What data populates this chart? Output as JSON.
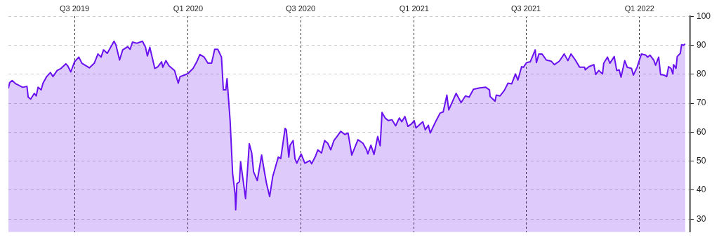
{
  "chart_data": {
    "type": "area",
    "x": [
      "2019-03-16",
      "2019-03-18",
      "2019-03-22",
      "2019-03-28",
      "2019-04-08",
      "2019-04-15",
      "2019-04-17",
      "2019-04-21",
      "2019-04-27",
      "2019-04-30",
      "2019-05-03",
      "2019-05-08",
      "2019-05-11",
      "2019-05-17",
      "2019-05-23",
      "2019-05-27",
      "2019-06-03",
      "2019-06-09",
      "2019-06-17",
      "2019-06-20",
      "2019-06-25",
      "2019-07-01",
      "2019-07-08",
      "2019-07-13",
      "2019-07-25",
      "2019-08-02",
      "2019-08-08",
      "2019-08-13",
      "2019-08-17",
      "2019-08-23",
      "2019-09-03",
      "2019-09-06",
      "2019-09-12",
      "2019-09-17",
      "2019-09-25",
      "2019-09-29",
      "2019-10-03",
      "2019-10-10",
      "2019-10-19",
      "2019-10-24",
      "2019-10-27",
      "2019-10-31",
      "2019-11-08",
      "2019-11-13",
      "2019-11-19",
      "2019-11-21",
      "2019-11-26",
      "2019-12-01",
      "2019-12-10",
      "2019-12-16",
      "2019-12-19",
      "2019-12-26",
      "2020-01-01",
      "2020-01-09",
      "2020-01-15",
      "2020-01-20",
      "2020-01-27",
      "2020-02-02",
      "2020-02-08",
      "2020-02-13",
      "2020-02-18",
      "2020-02-24",
      "2020-02-27",
      "2020-03-02",
      "2020-03-04",
      "2020-03-09",
      "2020-03-12",
      "2020-03-13",
      "2020-03-17",
      "2020-03-18",
      "2020-03-20",
      "2020-03-24",
      "2020-03-26",
      "2020-04-03",
      "2020-04-09",
      "2020-04-13",
      "2020-04-16",
      "2020-04-22",
      "2020-04-29",
      "2020-05-03",
      "2020-05-07",
      "2020-05-12",
      "2020-05-17",
      "2020-05-26",
      "2020-05-30",
      "2020-06-06",
      "2020-06-08",
      "2020-06-12",
      "2020-06-14",
      "2020-06-19",
      "2020-06-22",
      "2020-06-25",
      "2020-07-02",
      "2020-07-08",
      "2020-07-16",
      "2020-07-19",
      "2020-07-25",
      "2020-07-29",
      "2020-08-04",
      "2020-08-09",
      "2020-08-14",
      "2020-08-19",
      "2020-08-24",
      "2020-08-29",
      "2020-09-04",
      "2020-09-11",
      "2020-09-16",
      "2020-09-22",
      "2020-10-02",
      "2020-10-10",
      "2020-10-16",
      "2020-10-18",
      "2020-10-23",
      "2020-10-28",
      "2020-11-03",
      "2020-11-07",
      "2020-11-10",
      "2020-11-15",
      "2020-11-20",
      "2020-11-26",
      "2020-12-02",
      "2020-12-08",
      "2020-12-12",
      "2020-12-17",
      "2020-12-22",
      "2020-12-28",
      "2021-01-01",
      "2021-01-04",
      "2021-01-15",
      "2021-01-19",
      "2021-01-24",
      "2021-01-27",
      "2021-02-04",
      "2021-02-12",
      "2021-02-17",
      "2021-02-23",
      "2021-02-26",
      "2021-03-10",
      "2021-03-18",
      "2021-03-25",
      "2021-03-31",
      "2021-04-07",
      "2021-04-17",
      "2021-04-27",
      "2021-05-03",
      "2021-05-04",
      "2021-05-12",
      "2021-05-14",
      "2021-05-20",
      "2021-05-27",
      "2021-06-02",
      "2021-06-08",
      "2021-06-14",
      "2021-06-18",
      "2021-06-24",
      "2021-06-27",
      "2021-07-02",
      "2021-07-08",
      "2021-07-16",
      "2021-07-18",
      "2021-07-22",
      "2021-07-27",
      "2021-08-03",
      "2021-08-11",
      "2021-08-16",
      "2021-08-24",
      "2021-09-01",
      "2021-09-07",
      "2021-09-12",
      "2021-09-19",
      "2021-09-26",
      "2021-10-04",
      "2021-10-05",
      "2021-10-11",
      "2021-10-19",
      "2021-10-22",
      "2021-10-27",
      "2021-11-02",
      "2021-11-04",
      "2021-11-10",
      "2021-11-14",
      "2021-11-21",
      "2021-11-25",
      "2021-11-29",
      "2021-12-02",
      "2021-12-08",
      "2021-12-12",
      "2021-12-19",
      "2021-12-22",
      "2021-12-28",
      "2022-01-04",
      "2022-01-11",
      "2022-01-14",
      "2022-01-18",
      "2022-01-24",
      "2022-01-27",
      "2022-02-01",
      "2022-02-04",
      "2022-02-10",
      "2022-02-14",
      "2022-02-17",
      "2022-02-21",
      "2022-02-24",
      "2022-02-25",
      "2022-03-01",
      "2022-03-03",
      "2022-03-08",
      "2022-03-10",
      "2022-03-13",
      "2022-03-16"
    ],
    "series": [
      {
        "color": "#6a11f0",
        "values": [
          75.1,
          77.1,
          77.8,
          76.7,
          75.5,
          75.8,
          72.1,
          71.4,
          73.4,
          72.5,
          75.5,
          74.6,
          76.9,
          79.2,
          80.6,
          79.2,
          81.3,
          82.0,
          83.6,
          82.9,
          80.8,
          84.3,
          85.9,
          83.8,
          82.2,
          83.8,
          87.0,
          85.9,
          88.4,
          87.2,
          91.4,
          90.2,
          84.9,
          88.4,
          89.5,
          88.6,
          91.1,
          90.7,
          91.4,
          89.3,
          86.3,
          89.3,
          82.0,
          82.6,
          84.3,
          82.4,
          84.7,
          82.9,
          81.3,
          76.9,
          79.2,
          79.7,
          80.3,
          82.0,
          84.3,
          86.8,
          85.9,
          83.8,
          83.8,
          88.6,
          88.6,
          85.9,
          74.6,
          74.6,
          78.5,
          64.0,
          50.5,
          45.9,
          38.7,
          33.2,
          42.2,
          42.9,
          49.8,
          37.1,
          56.0,
          52.8,
          46.3,
          43.3,
          52.1,
          47.0,
          42.2,
          37.8,
          44.7,
          51.4,
          50.9,
          61.3,
          60.8,
          51.4,
          55.5,
          57.1,
          50.9,
          49.3,
          52.5,
          49.3,
          50.2,
          49.1,
          51.6,
          53.9,
          52.8,
          57.1,
          56.2,
          53.9,
          57.1,
          58.5,
          60.3,
          59.2,
          59.7,
          52.1,
          57.4,
          56.2,
          53.9,
          52.5,
          55.5,
          52.3,
          58.5,
          55.3,
          66.8,
          64.9,
          64.0,
          64.3,
          62.2,
          64.9,
          63.6,
          65.4,
          62.0,
          62.9,
          64.0,
          61.5,
          63.6,
          60.8,
          62.4,
          59.7,
          63.3,
          66.6,
          67.0,
          72.8,
          67.7,
          73.4,
          70.2,
          72.5,
          72.1,
          74.8,
          75.3,
          75.5,
          74.6,
          72.3,
          70.7,
          72.8,
          72.5,
          74.4,
          76.9,
          76.7,
          80.1,
          78.0,
          82.6,
          82.4,
          84.0,
          84.3,
          88.4,
          84.0,
          87.0,
          87.0,
          84.9,
          84.5,
          83.3,
          84.5,
          87.0,
          84.7,
          87.0,
          84.9,
          82.4,
          82.4,
          81.5,
          82.6,
          83.3,
          79.9,
          81.3,
          80.1,
          83.8,
          85.9,
          83.8,
          86.1,
          81.3,
          81.5,
          79.0,
          84.7,
          82.4,
          82.0,
          79.7,
          82.4,
          87.0,
          86.6,
          85.9,
          86.6,
          84.9,
          83.1,
          85.9,
          79.9,
          79.7,
          79.2,
          82.6,
          82.0,
          80.1,
          83.3,
          82.0,
          86.1,
          87.2,
          90.2,
          90.0,
          90.5
        ]
      }
    ],
    "xlim": [
      "2019-03-16",
      "2022-03-24"
    ],
    "ylim": [
      25.5,
      100
    ],
    "yticks": [
      30,
      40,
      50,
      60,
      70,
      80,
      90,
      100
    ],
    "xticks": [
      {
        "value": "2019-07-01",
        "label": "Q3 2019"
      },
      {
        "value": "2020-01-01",
        "label": "Q1 2020"
      },
      {
        "value": "2020-07-01",
        "label": "Q3 2020"
      },
      {
        "value": "2021-01-01",
        "label": "Q1 2021"
      },
      {
        "value": "2021-07-01",
        "label": "Q3 2021"
      },
      {
        "value": "2022-01-01",
        "label": "Q1 2022"
      }
    ],
    "grid": true,
    "marker": "none",
    "line_style": "solid"
  }
}
